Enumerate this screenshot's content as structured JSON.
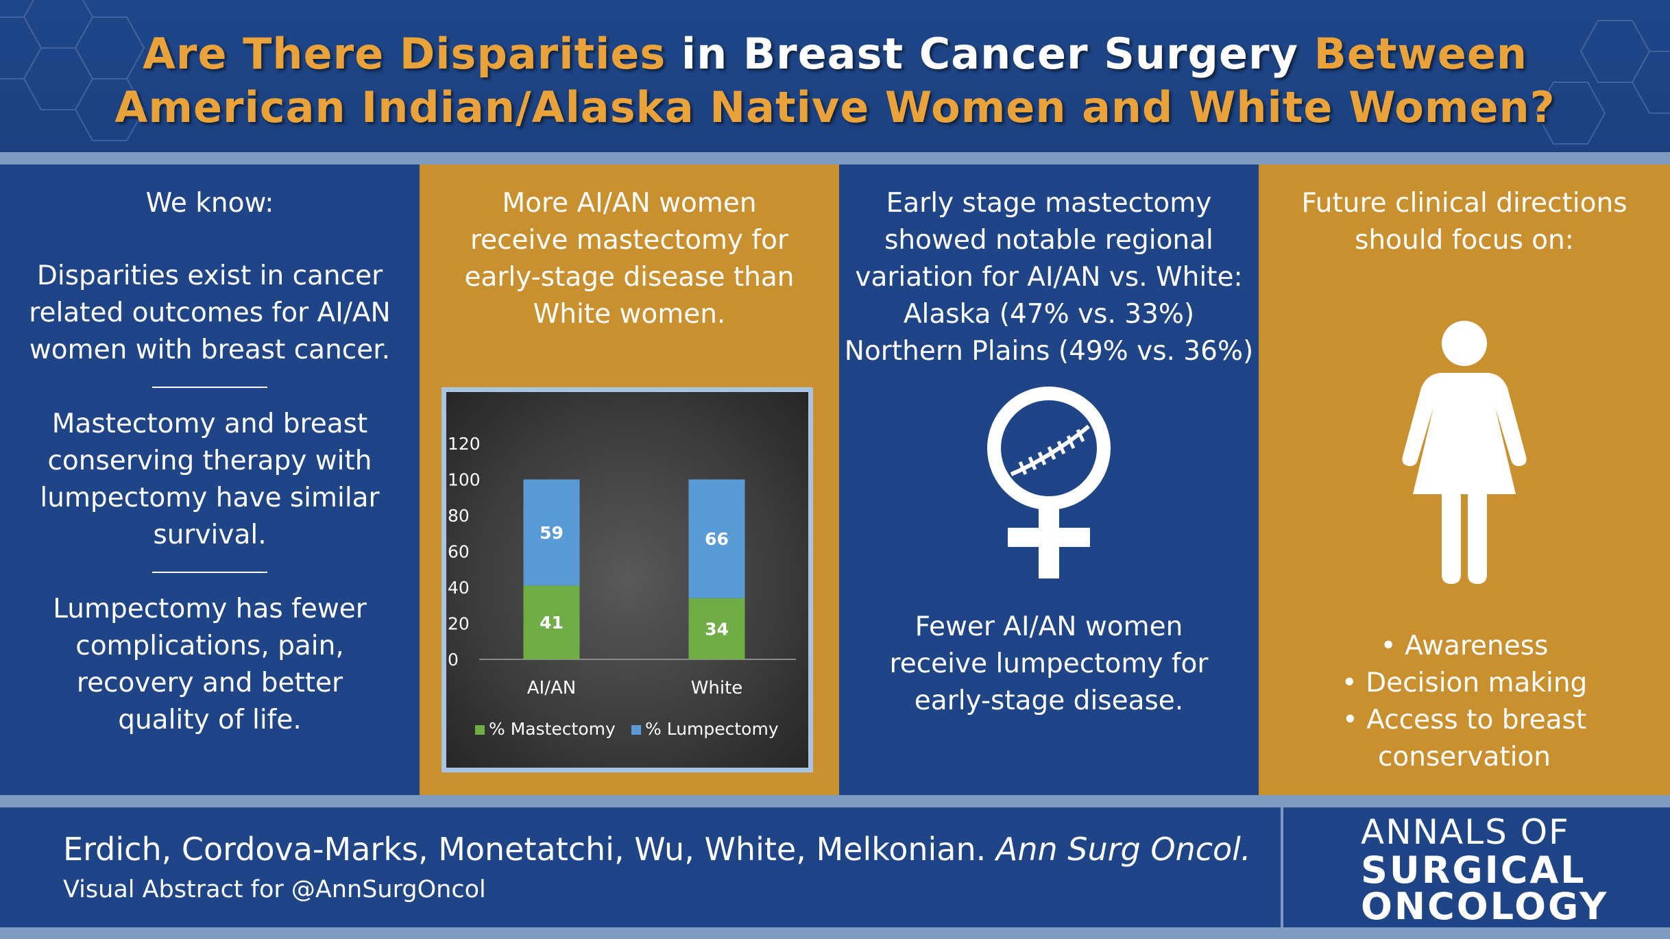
{
  "title": {
    "part1": "Are There Disparities",
    "part2": " in Breast Cancer Surgery ",
    "part3": "Between",
    "line2": "American Indian/Alaska Native Women and White Women?"
  },
  "panel1": {
    "heading": "We know:",
    "paragraphs": [
      "Disparities exist in cancer related outcomes for AI/AN women with breast cancer.",
      "Mastectomy and breast conserving therapy with lumpectomy have similar survival.",
      "Lumpectomy has fewer complications, pain, recovery and better quality of life."
    ]
  },
  "panel2": {
    "text": "More AI/AN women receive mastectomy for early-stage disease than White women."
  },
  "chart_data": {
    "type": "bar",
    "stacked": true,
    "categories": [
      "AI/AN",
      "White"
    ],
    "series": [
      {
        "name": "% Mastectomy",
        "values": [
          41,
          34
        ],
        "color": "#70ad47"
      },
      {
        "name": "% Lumpectomy",
        "values": [
          59,
          66
        ],
        "color": "#5b9bd5"
      }
    ],
    "ylim": [
      0,
      120
    ],
    "yticks": [
      "0",
      "20",
      "40",
      "60",
      "80",
      "100",
      "120"
    ],
    "legend": "bottom"
  },
  "panel3": {
    "lines": [
      "Early stage mastectomy",
      "showed notable regional",
      "variation for AI/AN vs. White:",
      "Alaska (47% vs. 33%)",
      "Northern Plains (49% vs. 36%)"
    ],
    "bottom_text": "Fewer AI/AN women receive lumpectomy for early-stage disease.",
    "icon": "female-ribbon-icon"
  },
  "panel4": {
    "heading": "Future clinical directions should focus on:",
    "icon": "woman-icon",
    "bullets": [
      "• Awareness",
      "• Decision making",
      "• Access to breast conservation"
    ]
  },
  "footer": {
    "authors": "Erdich, Cordova-Marks, Monetatchi, Wu, White, Melkonian. ",
    "journal": "Ann Surg Oncol.",
    "visual_abstract": "Visual Abstract for @AnnSurgOncol",
    "logo": {
      "line1": "ANNALS OF",
      "line2": "SURGICAL",
      "line3": "ONCOLOGY"
    }
  },
  "colors": {
    "blue": "#1f4586",
    "gold": "#c8902f",
    "orange_title": "#e9a33a",
    "band": "#7f9bbf"
  }
}
